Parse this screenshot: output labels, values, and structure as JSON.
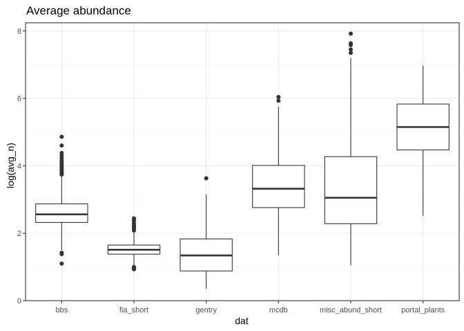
{
  "chart_data": {
    "type": "boxplot",
    "title": "Average abundance",
    "xlabel": "dat",
    "ylabel": "log(avg_n)",
    "ylim": [
      0,
      8.2
    ],
    "yticks": [
      0,
      2,
      4,
      6,
      8
    ],
    "grid": true,
    "colors": {
      "panel_border": "#333333",
      "grid_major": "#ebebeb",
      "grid_minor": "#f5f5f5",
      "box": "#333333",
      "fill": "#ffffff"
    },
    "categories": [
      "bbs",
      "fia_short",
      "gentry",
      "mcdb",
      "misc_abund_short",
      "portal_plants"
    ],
    "boxes": [
      {
        "name": "bbs",
        "lower_whisker": 1.5,
        "q1": 2.32,
        "median": 2.56,
        "q3": 2.87,
        "upper_whisker": 3.7,
        "outliers": [
          1.1,
          1.38,
          1.42,
          3.74,
          3.78,
          3.82,
          3.86,
          3.9,
          3.95,
          4.0,
          4.05,
          4.1,
          4.15,
          4.22,
          4.3,
          4.38,
          4.6,
          4.86
        ]
      },
      {
        "name": "fia_short",
        "lower_whisker": 1.05,
        "q1": 1.38,
        "median": 1.51,
        "q3": 1.65,
        "upper_whisker": 2.05,
        "outliers": [
          0.93,
          0.97,
          1.0,
          2.08,
          2.12,
          2.16,
          2.2,
          2.25,
          2.3,
          2.38,
          2.44
        ]
      },
      {
        "name": "gentry",
        "lower_whisker": 0.35,
        "q1": 0.88,
        "median": 1.34,
        "q3": 1.83,
        "upper_whisker": 3.15,
        "outliers": [
          3.63
        ]
      },
      {
        "name": "mcdb",
        "lower_whisker": 1.35,
        "q1": 2.76,
        "median": 3.32,
        "q3": 4.01,
        "upper_whisker": 5.75,
        "outliers": [
          5.93,
          6.04
        ]
      },
      {
        "name": "misc_abund_short",
        "lower_whisker": 1.05,
        "q1": 2.28,
        "median": 3.05,
        "q3": 4.27,
        "upper_whisker": 7.2,
        "outliers": [
          7.35,
          7.45,
          7.58,
          7.63,
          7.92
        ]
      },
      {
        "name": "portal_plants",
        "lower_whisker": 2.52,
        "q1": 4.47,
        "median": 5.15,
        "q3": 5.83,
        "upper_whisker": 6.97,
        "outliers": []
      }
    ]
  }
}
